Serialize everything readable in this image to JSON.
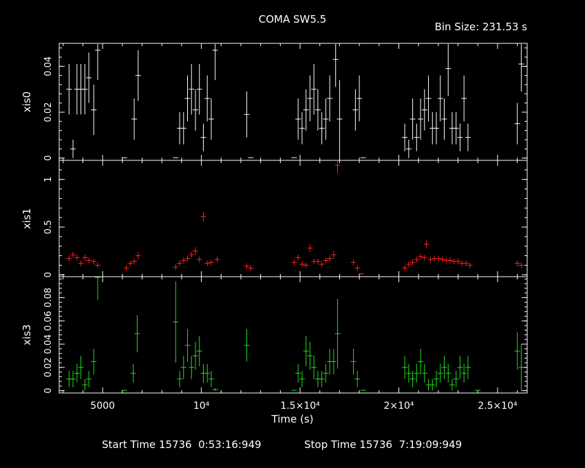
{
  "header": {
    "title": "COMA SW5.5",
    "bin_size": "Bin Size: 231.53 s"
  },
  "footer": {
    "start_label": "Start Time 15736  0:53:16:949",
    "stop_label": "Stop Time 15736  7:19:09:949"
  },
  "colors": {
    "xis0": "#ffffff",
    "xis1": "#ff2020",
    "xis3": "#20e020",
    "axes": "#ffffff",
    "background": "#000000"
  },
  "chart_data": {
    "type": "scatter",
    "xlabel": "Time (s)",
    "xlim": [
      2800,
      26500
    ],
    "x_ticks": [
      {
        "value": 5000,
        "label": "5000"
      },
      {
        "value": 10000,
        "label": "10⁴"
      },
      {
        "value": 15000,
        "label": "1.5×10⁴"
      },
      {
        "value": 20000,
        "label": "2×10⁴"
      },
      {
        "value": 25000,
        "label": "2.5×10⁴"
      }
    ],
    "panels": [
      {
        "name": "xis0",
        "ylabel": "xis0",
        "ylim": [
          -0.001,
          0.05
        ],
        "yticks": [
          {
            "value": 0,
            "label": "0"
          },
          {
            "value": 0.02,
            "label": "0.02"
          },
          {
            "value": 0.04,
            "label": "0.04"
          }
        ],
        "points": [
          [
            3300,
            0.03,
            0.011
          ],
          [
            3500,
            0.004,
            0.004
          ],
          [
            3700,
            0.03,
            0.011
          ],
          [
            3900,
            0.03,
            0.011
          ],
          [
            4100,
            0.03,
            0.011
          ],
          [
            4300,
            0.035,
            0.011
          ],
          [
            4550,
            0.021,
            0.011
          ],
          [
            4750,
            0.047,
            0.013
          ],
          [
            6600,
            0.017,
            0.009
          ],
          [
            6800,
            0.036,
            0.011
          ],
          [
            8900,
            0.013,
            0.007
          ],
          [
            9100,
            0.013,
            0.007
          ],
          [
            9300,
            0.026,
            0.01
          ],
          [
            9500,
            0.03,
            0.011
          ],
          [
            9700,
            0.021,
            0.009
          ],
          [
            9900,
            0.03,
            0.011
          ],
          [
            10100,
            0.009,
            0.006
          ],
          [
            10300,
            0.026,
            0.01
          ],
          [
            10500,
            0.017,
            0.009
          ],
          [
            10700,
            0.047,
            0.013
          ],
          [
            12300,
            0.019,
            0.01
          ],
          [
            14900,
            0.017,
            0.009
          ],
          [
            15100,
            0.013,
            0.007
          ],
          [
            15300,
            0.021,
            0.009
          ],
          [
            15500,
            0.026,
            0.01
          ],
          [
            15700,
            0.03,
            0.011
          ],
          [
            15900,
            0.021,
            0.009
          ],
          [
            16100,
            0.013,
            0.007
          ],
          [
            16300,
            0.017,
            0.009
          ],
          [
            16500,
            0.026,
            0.01
          ],
          [
            16800,
            0.043,
            0.012
          ],
          [
            17000,
            0.017,
            0.017
          ],
          [
            17800,
            0.021,
            0.009
          ],
          [
            18000,
            0.026,
            0.01
          ],
          [
            20300,
            0.009,
            0.006
          ],
          [
            20500,
            0.004,
            0.004
          ],
          [
            20700,
            0.017,
            0.009
          ],
          [
            20900,
            0.009,
            0.006
          ],
          [
            21100,
            0.017,
            0.009
          ],
          [
            21300,
            0.021,
            0.009
          ],
          [
            21500,
            0.026,
            0.01
          ],
          [
            21700,
            0.013,
            0.007
          ],
          [
            21900,
            0.013,
            0.007
          ],
          [
            22100,
            0.026,
            0.01
          ],
          [
            22300,
            0.017,
            0.009
          ],
          [
            22500,
            0.039,
            0.012
          ],
          [
            22700,
            0.013,
            0.007
          ],
          [
            22900,
            0.013,
            0.007
          ],
          [
            23100,
            0.009,
            0.006
          ],
          [
            23300,
            0.026,
            0.01
          ],
          [
            23500,
            0.009,
            0.006
          ],
          [
            26000,
            0.015,
            0.009
          ],
          [
            26200,
            0.041,
            0.012
          ]
        ],
        "flat_marks": [
          6100,
          8700,
          12500,
          14700,
          18200
        ]
      },
      {
        "name": "xis1",
        "ylabel": "xis1",
        "ylim": [
          -0.02,
          1.2
        ],
        "yticks": [
          {
            "value": 0,
            "label": "0"
          },
          {
            "value": 0.5,
            "label": "0.5"
          },
          {
            "value": 1,
            "label": "1"
          }
        ],
        "points": [
          [
            3300,
            0.17,
            0.03
          ],
          [
            3500,
            0.21,
            0.03
          ],
          [
            3700,
            0.18,
            0.03
          ],
          [
            3900,
            0.12,
            0.03
          ],
          [
            4100,
            0.18,
            0.03
          ],
          [
            4300,
            0.15,
            0.03
          ],
          [
            4550,
            0.14,
            0.03
          ],
          [
            4750,
            0.1,
            0.03
          ],
          [
            6200,
            0.07,
            0.03
          ],
          [
            6400,
            0.12,
            0.03
          ],
          [
            6600,
            0.14,
            0.03
          ],
          [
            6800,
            0.2,
            0.04
          ],
          [
            8700,
            0.08,
            0.03
          ],
          [
            8900,
            0.12,
            0.03
          ],
          [
            9100,
            0.15,
            0.03
          ],
          [
            9300,
            0.17,
            0.03
          ],
          [
            9500,
            0.21,
            0.03
          ],
          [
            9700,
            0.25,
            0.04
          ],
          [
            9900,
            0.16,
            0.03
          ],
          [
            10100,
            0.61,
            0.05
          ],
          [
            10300,
            0.12,
            0.03
          ],
          [
            10500,
            0.13,
            0.03
          ],
          [
            10800,
            0.16,
            0.03
          ],
          [
            12300,
            0.09,
            0.03
          ],
          [
            12500,
            0.07,
            0.03
          ],
          [
            14700,
            0.13,
            0.03
          ],
          [
            14900,
            0.18,
            0.03
          ],
          [
            15100,
            0.11,
            0.03
          ],
          [
            15300,
            0.1,
            0.03
          ],
          [
            15500,
            0.28,
            0.04
          ],
          [
            15700,
            0.14,
            0.03
          ],
          [
            15900,
            0.14,
            0.03
          ],
          [
            16100,
            0.11,
            0.03
          ],
          [
            16300,
            0.15,
            0.03
          ],
          [
            16500,
            0.17,
            0.03
          ],
          [
            16700,
            0.21,
            0.04
          ],
          [
            16900,
            1.15,
            0.09
          ],
          [
            17700,
            0.13,
            0.03
          ],
          [
            17900,
            0.07,
            0.03
          ],
          [
            18100,
            0.01,
            0.01
          ],
          [
            20300,
            0.07,
            0.03
          ],
          [
            20500,
            0.11,
            0.03
          ],
          [
            20700,
            0.13,
            0.03
          ],
          [
            20900,
            0.16,
            0.03
          ],
          [
            21100,
            0.19,
            0.03
          ],
          [
            21300,
            0.18,
            0.03
          ],
          [
            21400,
            0.32,
            0.04
          ],
          [
            21600,
            0.16,
            0.03
          ],
          [
            21800,
            0.17,
            0.03
          ],
          [
            22000,
            0.17,
            0.03
          ],
          [
            22200,
            0.16,
            0.03
          ],
          [
            22400,
            0.15,
            0.03
          ],
          [
            22600,
            0.15,
            0.03
          ],
          [
            22800,
            0.14,
            0.03
          ],
          [
            23000,
            0.14,
            0.03
          ],
          [
            23200,
            0.12,
            0.03
          ],
          [
            23400,
            0.12,
            0.03
          ],
          [
            23600,
            0.1,
            0.03
          ],
          [
            26000,
            0.12,
            0.03
          ],
          [
            26200,
            0.1,
            0.03
          ]
        ],
        "flat_marks": []
      },
      {
        "name": "xis3",
        "ylabel": "xis3",
        "ylim": [
          -0.002,
          0.098
        ],
        "yticks": [
          {
            "value": 0,
            "label": "0"
          },
          {
            "value": 0.02,
            "label": "0.02"
          },
          {
            "value": 0.04,
            "label": "0.04"
          },
          {
            "value": 0.06,
            "label": "0.06"
          },
          {
            "value": 0.08,
            "label": "0.08"
          }
        ],
        "points": [
          [
            3300,
            0.01,
            0.007
          ],
          [
            3500,
            0.01,
            0.007
          ],
          [
            3700,
            0.015,
            0.008
          ],
          [
            3900,
            0.02,
            0.01
          ],
          [
            4100,
            0.005,
            0.005
          ],
          [
            4300,
            0.01,
            0.007
          ],
          [
            4550,
            0.025,
            0.011
          ],
          [
            4750,
            0.098,
            0.02
          ],
          [
            6550,
            0.015,
            0.008
          ],
          [
            6750,
            0.049,
            0.016
          ],
          [
            8700,
            0.059,
            0.035
          ],
          [
            8900,
            0.01,
            0.007
          ],
          [
            9100,
            0.02,
            0.01
          ],
          [
            9300,
            0.039,
            0.014
          ],
          [
            9500,
            0.02,
            0.01
          ],
          [
            9700,
            0.03,
            0.012
          ],
          [
            9900,
            0.034,
            0.013
          ],
          [
            10100,
            0.015,
            0.008
          ],
          [
            10300,
            0.015,
            0.008
          ],
          [
            10500,
            0.01,
            0.007
          ],
          [
            10700,
            0.001,
            0.001
          ],
          [
            12300,
            0.039,
            0.014
          ],
          [
            14900,
            0.015,
            0.008
          ],
          [
            15100,
            0.01,
            0.007
          ],
          [
            15300,
            0.034,
            0.013
          ],
          [
            15500,
            0.03,
            0.012
          ],
          [
            15700,
            0.02,
            0.01
          ],
          [
            15900,
            0.01,
            0.007
          ],
          [
            16100,
            0.01,
            0.007
          ],
          [
            16300,
            0.015,
            0.008
          ],
          [
            16500,
            0.025,
            0.011
          ],
          [
            16700,
            0.025,
            0.011
          ],
          [
            16900,
            0.049,
            0.03
          ],
          [
            17700,
            0.025,
            0.011
          ],
          [
            17900,
            0.01,
            0.007
          ],
          [
            20300,
            0.02,
            0.01
          ],
          [
            20500,
            0.015,
            0.008
          ],
          [
            20700,
            0.01,
            0.007
          ],
          [
            20900,
            0.015,
            0.008
          ],
          [
            21100,
            0.025,
            0.011
          ],
          [
            21300,
            0.015,
            0.008
          ],
          [
            21500,
            0.005,
            0.005
          ],
          [
            21700,
            0.005,
            0.005
          ],
          [
            21900,
            0.01,
            0.007
          ],
          [
            22100,
            0.015,
            0.008
          ],
          [
            22300,
            0.02,
            0.01
          ],
          [
            22500,
            0.015,
            0.008
          ],
          [
            22700,
            0.005,
            0.005
          ],
          [
            22900,
            0.01,
            0.007
          ],
          [
            23100,
            0.02,
            0.01
          ],
          [
            23300,
            0.015,
            0.008
          ],
          [
            23500,
            0.02,
            0.01
          ],
          [
            26000,
            0.034,
            0.016
          ],
          [
            26200,
            0.02,
            0.02
          ]
        ],
        "flat_marks": [
          6100,
          14700,
          18200,
          24000
        ]
      }
    ]
  }
}
